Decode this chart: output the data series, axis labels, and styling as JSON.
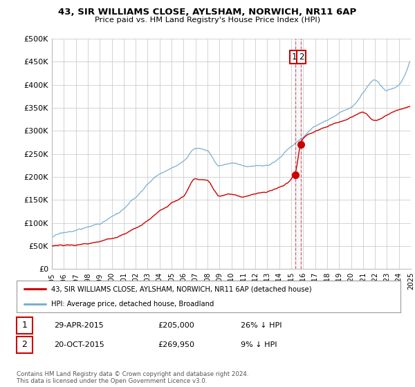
{
  "title": "43, SIR WILLIAMS CLOSE, AYLSHAM, NORWICH, NR11 6AP",
  "subtitle": "Price paid vs. HM Land Registry's House Price Index (HPI)",
  "ylabel_ticks": [
    "£0",
    "£50K",
    "£100K",
    "£150K",
    "£200K",
    "£250K",
    "£300K",
    "£350K",
    "£400K",
    "£450K",
    "£500K"
  ],
  "ylabel_values": [
    0,
    50000,
    100000,
    150000,
    200000,
    250000,
    300000,
    350000,
    400000,
    450000,
    500000
  ],
  "ylim": [
    0,
    500000
  ],
  "xlim_start": 1995.0,
  "xlim_end": 2025.0,
  "legend_line1": "43, SIR WILLIAMS CLOSE, AYLSHAM, NORWICH, NR11 6AP (detached house)",
  "legend_line2": "HPI: Average price, detached house, Broadland",
  "annotation1_date": "29-APR-2015",
  "annotation1_price": "£205,000",
  "annotation1_pct": "26% ↓ HPI",
  "annotation2_date": "20-OCT-2015",
  "annotation2_price": "£269,950",
  "annotation2_pct": "9% ↓ HPI",
  "footer": "Contains HM Land Registry data © Crown copyright and database right 2024.\nThis data is licensed under the Open Government Licence v3.0.",
  "sale1_x": 2015.32,
  "sale1_y": 205000,
  "sale2_x": 2015.8,
  "sale2_y": 269950,
  "vline1_x": 2015.32,
  "vline2_x": 2015.8,
  "line_color_red": "#cc0000",
  "line_color_blue": "#7aafd4",
  "annotation_box_color": "#cc0000",
  "background_color": "#ffffff",
  "grid_color": "#cccccc",
  "hpi_years": [
    1995,
    1996,
    1997,
    1998,
    1999,
    2000,
    2001,
    2002,
    2003,
    2004,
    2005,
    2006,
    2007,
    2008,
    2009,
    2010,
    2011,
    2012,
    2013,
    2014,
    2015,
    2016,
    2017,
    2018,
    2019,
    2020,
    2021,
    2022,
    2023,
    2024
  ],
  "hpi_prices": [
    70000,
    77000,
    83000,
    89000,
    98000,
    110000,
    125000,
    148000,
    175000,
    200000,
    210000,
    225000,
    255000,
    248000,
    215000,
    220000,
    215000,
    215000,
    222000,
    240000,
    265000,
    285000,
    310000,
    325000,
    340000,
    350000,
    380000,
    410000,
    385000,
    395000
  ],
  "prop_years": [
    1995,
    1996,
    1997,
    1998,
    1999,
    2000,
    2001,
    2002,
    2003,
    2004,
    2005,
    2006,
    2007,
    2008,
    2009,
    2010,
    2011,
    2012,
    2013,
    2014,
    2015.32,
    2015.8,
    2016,
    2017,
    2018,
    2019,
    2020,
    2021,
    2022,
    2023,
    2024
  ],
  "prop_prices": [
    50000,
    50500,
    52000,
    55000,
    58000,
    63000,
    72000,
    85000,
    100000,
    120000,
    135000,
    150000,
    190000,
    185000,
    150000,
    155000,
    152000,
    158000,
    165000,
    172000,
    205000,
    269950,
    280000,
    295000,
    305000,
    315000,
    325000,
    338000,
    320000,
    330000,
    340000
  ]
}
